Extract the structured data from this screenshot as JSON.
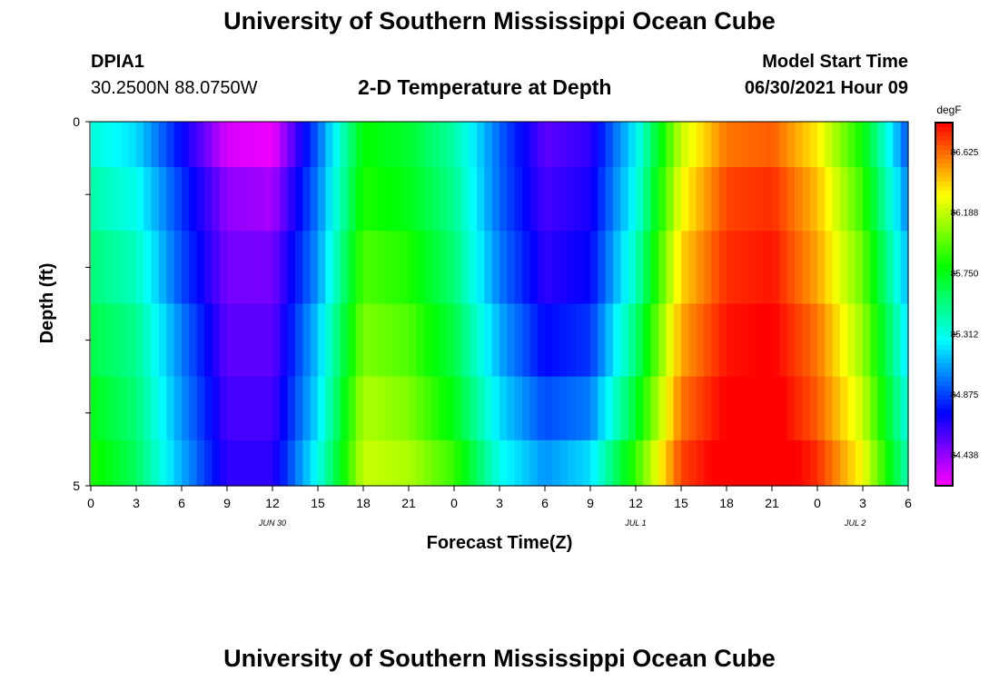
{
  "header": {
    "title": "University of Southern Mississippi Ocean Cube",
    "station_id": "DPIA1",
    "coordinates": "30.2500N  88.0750W",
    "plot_title": "2-D Temperature at Depth",
    "model_start_label": "Model Start Time",
    "model_start_value": "06/30/2021 Hour 09"
  },
  "footer": {
    "title": "University of Southern Mississippi Ocean Cube"
  },
  "chart_data": {
    "type": "heatmap",
    "title": "2-D Temperature at Depth",
    "xlabel": "Forecast Time(Z)",
    "ylabel": "Depth (ft)",
    "x_ticks": [
      "0",
      "3",
      "6",
      "9",
      "12",
      "15",
      "18",
      "21",
      "0",
      "3",
      "6",
      "9",
      "12",
      "15",
      "18",
      "21",
      "0",
      "3",
      "6"
    ],
    "date_labels": [
      "JUN 30",
      "JUL 1",
      "JUL 2"
    ],
    "y_ticks": [
      "0",
      "5"
    ],
    "ylim": [
      0,
      5
    ],
    "colorbar": {
      "unit": "degF",
      "ticks": [
        "86.625",
        "86.188",
        "85.750",
        "85.312",
        "84.875",
        "84.438"
      ],
      "range": [
        84.22,
        86.84
      ]
    },
    "x_hours": [
      0,
      3,
      6,
      9,
      12,
      15,
      18,
      21,
      24,
      27,
      30,
      33,
      36,
      39,
      42,
      45,
      48,
      51,
      54
    ],
    "depths": [
      0.25,
      1.0,
      2.0,
      3.0,
      4.0,
      4.75
    ],
    "z": [
      [
        85.35,
        85.2,
        84.75,
        84.3,
        84.25,
        84.95,
        85.8,
        85.7,
        85.45,
        84.95,
        84.55,
        84.65,
        85.25,
        86.2,
        86.6,
        86.65,
        86.35,
        85.8,
        84.9
      ],
      [
        85.45,
        85.3,
        84.85,
        84.45,
        84.4,
        85.0,
        85.85,
        85.75,
        85.5,
        84.95,
        84.6,
        84.7,
        85.3,
        86.3,
        86.7,
        86.75,
        86.45,
        85.9,
        85.0
      ],
      [
        85.55,
        85.4,
        84.9,
        84.5,
        84.5,
        85.05,
        85.95,
        85.85,
        85.55,
        85.0,
        84.65,
        84.75,
        85.4,
        86.4,
        86.75,
        86.8,
        86.5,
        86.0,
        85.1
      ],
      [
        85.65,
        85.5,
        85.0,
        84.55,
        84.55,
        85.15,
        86.05,
        85.95,
        85.65,
        85.1,
        84.75,
        84.85,
        85.55,
        86.5,
        86.8,
        86.85,
        86.6,
        86.1,
        85.2
      ],
      [
        85.75,
        85.55,
        85.05,
        84.6,
        84.6,
        85.2,
        86.15,
        86.05,
        85.75,
        85.2,
        84.9,
        85.0,
        85.7,
        86.6,
        86.85,
        86.9,
        86.65,
        86.2,
        85.3
      ],
      [
        85.85,
        85.6,
        85.1,
        84.65,
        84.65,
        85.3,
        86.2,
        86.15,
        85.9,
        85.3,
        85.05,
        85.2,
        85.9,
        86.7,
        86.9,
        86.95,
        86.75,
        86.3,
        85.4
      ]
    ]
  }
}
